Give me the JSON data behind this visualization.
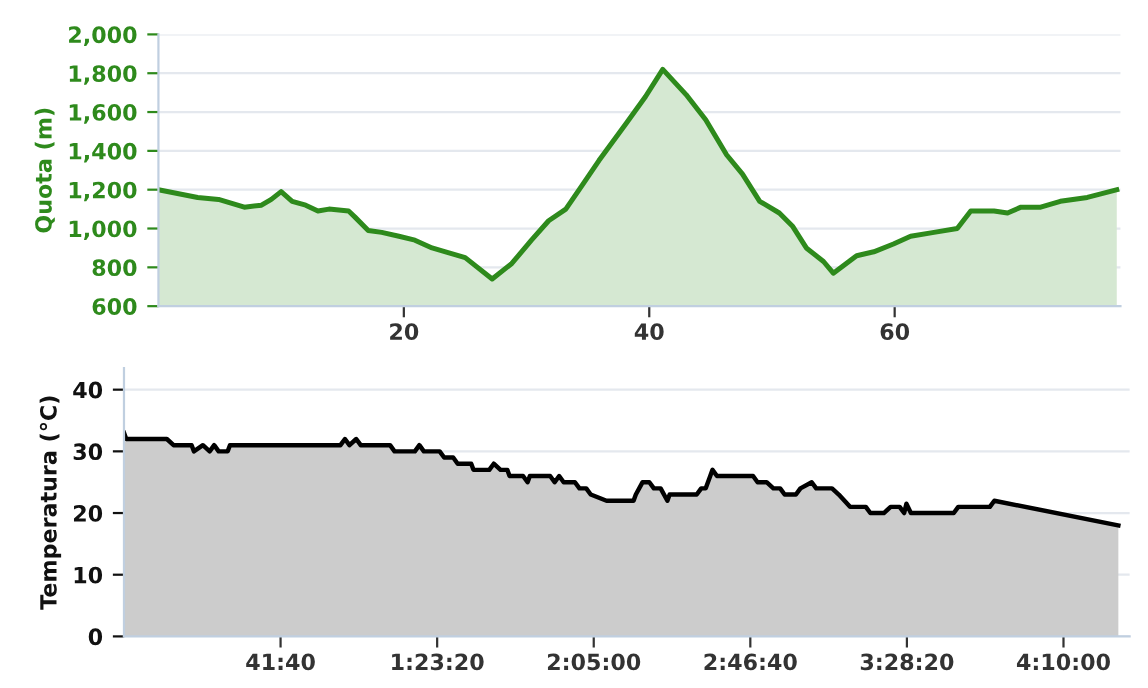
{
  "chart_data": [
    {
      "type": "area",
      "ylabel": "Quota (m)",
      "xlim": [
        0,
        78.4
      ],
      "ylim": [
        600,
        2000
      ],
      "xticks": [
        20,
        40,
        60
      ],
      "yticks": [
        {
          "value": 600,
          "label": "600"
        },
        {
          "value": 800,
          "label": "800"
        },
        {
          "value": 1000,
          "label": "1,000"
        },
        {
          "value": 1200,
          "label": "1,200"
        },
        {
          "value": 1400,
          "label": "1,400"
        },
        {
          "value": 1600,
          "label": "1,600"
        },
        {
          "value": 1800,
          "label": "1,800"
        },
        {
          "value": 2000,
          "label": "2,000"
        }
      ],
      "grid": "y",
      "series": [
        {
          "color": "#2e8a1c",
          "x": [
            0,
            3.2,
            4.9,
            7.0,
            8.4,
            9.2,
            10.0,
            10.9,
            12.0,
            13.0,
            13.9,
            15.5,
            16.0,
            17.1,
            18.2,
            19.6,
            20.9,
            22.3,
            23.4,
            25.0,
            27.2,
            28.8,
            30.4,
            31.8,
            33.2,
            34.5,
            35.9,
            38.1,
            39.7,
            41.1,
            43.0,
            44.6,
            46.3,
            47.6,
            49.0,
            50.6,
            51.7,
            52.8,
            54.2,
            55.0,
            56.9,
            58.3,
            59.9,
            61.3,
            63.2,
            65.1,
            66.2,
            68.1,
            69.2,
            70.3,
            71.9,
            73.5,
            75.7,
            78.1
          ],
          "values": [
            1200,
            1160,
            1150,
            1110,
            1120,
            1150,
            1190,
            1140,
            1120,
            1090,
            1100,
            1090,
            1060,
            990,
            980,
            960,
            940,
            900,
            880,
            850,
            740,
            820,
            940,
            1040,
            1100,
            1220,
            1350,
            1540,
            1680,
            1820,
            1690,
            1560,
            1380,
            1280,
            1140,
            1080,
            1010,
            900,
            830,
            770,
            860,
            880,
            920,
            960,
            980,
            1000,
            1090,
            1090,
            1080,
            1110,
            1110,
            1140,
            1160,
            1200
          ]
        }
      ]
    },
    {
      "type": "area",
      "ylabel": "Temperatura (°C)",
      "xlim": [
        0,
        16056
      ],
      "ylim": [
        0,
        43.5
      ],
      "yticks": [
        0,
        10,
        20,
        30,
        40
      ],
      "xticks": [
        {
          "value": 2500,
          "label": "41:40"
        },
        {
          "value": 5000,
          "label": "1:23:20"
        },
        {
          "value": 7500,
          "label": "2:05:00"
        },
        {
          "value": 10000,
          "label": "2:46:40"
        },
        {
          "value": 12500,
          "label": "3:28:20"
        },
        {
          "value": 15000,
          "label": "4:10:00"
        }
      ],
      "grid": "y",
      "series": [
        {
          "color": "#000000",
          "x": [
            0,
            36,
            684,
            792,
            1080,
            1116,
            1260,
            1368,
            1440,
            1512,
            1656,
            1692,
            3456,
            3528,
            3600,
            3708,
            3780,
            4248,
            4320,
            4644,
            4716,
            4788,
            5040,
            5112,
            5256,
            5328,
            5544,
            5580,
            5832,
            5904,
            6012,
            6120,
            6156,
            6372,
            6444,
            6480,
            6804,
            6876,
            6948,
            7020,
            7200,
            7272,
            7380,
            7452,
            7704,
            8136,
            8172,
            8280,
            8388,
            8460,
            8568,
            8676,
            8712,
            9144,
            9216,
            9288,
            9360,
            9396,
            9468,
            10044,
            10116,
            10260,
            10368,
            10476,
            10548,
            10728,
            10800,
            10980,
            11052,
            11304,
            11412,
            11592,
            11844,
            11916,
            12132,
            12240,
            12384,
            12456,
            12492,
            12564,
            13248,
            13320,
            13824,
            13896,
            15876
          ],
          "values": [
            33,
            32,
            32,
            31,
            31,
            30,
            31,
            30,
            31,
            30,
            30,
            31,
            31,
            32,
            31,
            32,
            31,
            31,
            30,
            30,
            31,
            30,
            30,
            29,
            29,
            28,
            28,
            27,
            27,
            28,
            27,
            27,
            26,
            26,
            25,
            26,
            26,
            25,
            26,
            25,
            25,
            24,
            24,
            23,
            22,
            22,
            23,
            25,
            25,
            24,
            24,
            22,
            23,
            23,
            24,
            24,
            26,
            27,
            26,
            26,
            25,
            25,
            24,
            24,
            23,
            23,
            24,
            25,
            24,
            24,
            23,
            21,
            21,
            20,
            20,
            21,
            21,
            20,
            21.5,
            20,
            20,
            21,
            21,
            22,
            18
          ]
        }
      ]
    }
  ]
}
